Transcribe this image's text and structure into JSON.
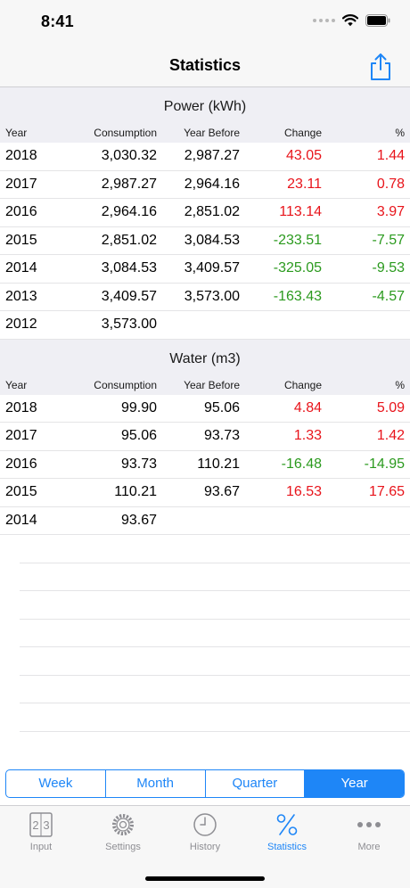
{
  "status_bar": {
    "time": "8:41"
  },
  "nav": {
    "title": "Statistics"
  },
  "columns": {
    "year": "Year",
    "consumption": "Consumption",
    "year_before": "Year Before",
    "change": "Change",
    "percent": "%"
  },
  "power": {
    "title": "Power (kWh)",
    "rows": [
      {
        "year": "2018",
        "consumption": "3,030.32",
        "year_before": "2,987.27",
        "change": "43.05",
        "percent": "1.44",
        "trend": "up"
      },
      {
        "year": "2017",
        "consumption": "2,987.27",
        "year_before": "2,964.16",
        "change": "23.11",
        "percent": "0.78",
        "trend": "up"
      },
      {
        "year": "2016",
        "consumption": "2,964.16",
        "year_before": "2,851.02",
        "change": "113.14",
        "percent": "3.97",
        "trend": "up"
      },
      {
        "year": "2015",
        "consumption": "2,851.02",
        "year_before": "3,084.53",
        "change": "-233.51",
        "percent": "-7.57",
        "trend": "down"
      },
      {
        "year": "2014",
        "consumption": "3,084.53",
        "year_before": "3,409.57",
        "change": "-325.05",
        "percent": "-9.53",
        "trend": "down"
      },
      {
        "year": "2013",
        "consumption": "3,409.57",
        "year_before": "3,573.00",
        "change": "-163.43",
        "percent": "-4.57",
        "trend": "down"
      },
      {
        "year": "2012",
        "consumption": "3,573.00",
        "year_before": "",
        "change": "",
        "percent": "",
        "trend": ""
      }
    ]
  },
  "water": {
    "title": "Water (m3)",
    "rows": [
      {
        "year": "2018",
        "consumption": "99.90",
        "year_before": "95.06",
        "change": "4.84",
        "percent": "5.09",
        "trend": "up"
      },
      {
        "year": "2017",
        "consumption": "95.06",
        "year_before": "93.73",
        "change": "1.33",
        "percent": "1.42",
        "trend": "up"
      },
      {
        "year": "2016",
        "consumption": "93.73",
        "year_before": "110.21",
        "change": "-16.48",
        "percent": "-14.95",
        "trend": "down"
      },
      {
        "year": "2015",
        "consumption": "110.21",
        "year_before": "93.67",
        "change": "16.53",
        "percent": "17.65",
        "trend": "up"
      },
      {
        "year": "2014",
        "consumption": "93.67",
        "year_before": "",
        "change": "",
        "percent": "",
        "trend": ""
      }
    ]
  },
  "period_selector": {
    "options": [
      "Week",
      "Month",
      "Quarter",
      "Year"
    ],
    "selected": "Year"
  },
  "tabs": [
    {
      "label": "Input",
      "icon": "calculator-icon"
    },
    {
      "label": "Settings",
      "icon": "gear-icon"
    },
    {
      "label": "History",
      "icon": "clock-icon"
    },
    {
      "label": "Statistics",
      "icon": "percent-icon",
      "active": true
    },
    {
      "label": "More",
      "icon": "more-dots-icon"
    }
  ],
  "colors": {
    "accent": "#1e86f7",
    "increase": "#e8141b",
    "decrease": "#2b9a1e"
  }
}
